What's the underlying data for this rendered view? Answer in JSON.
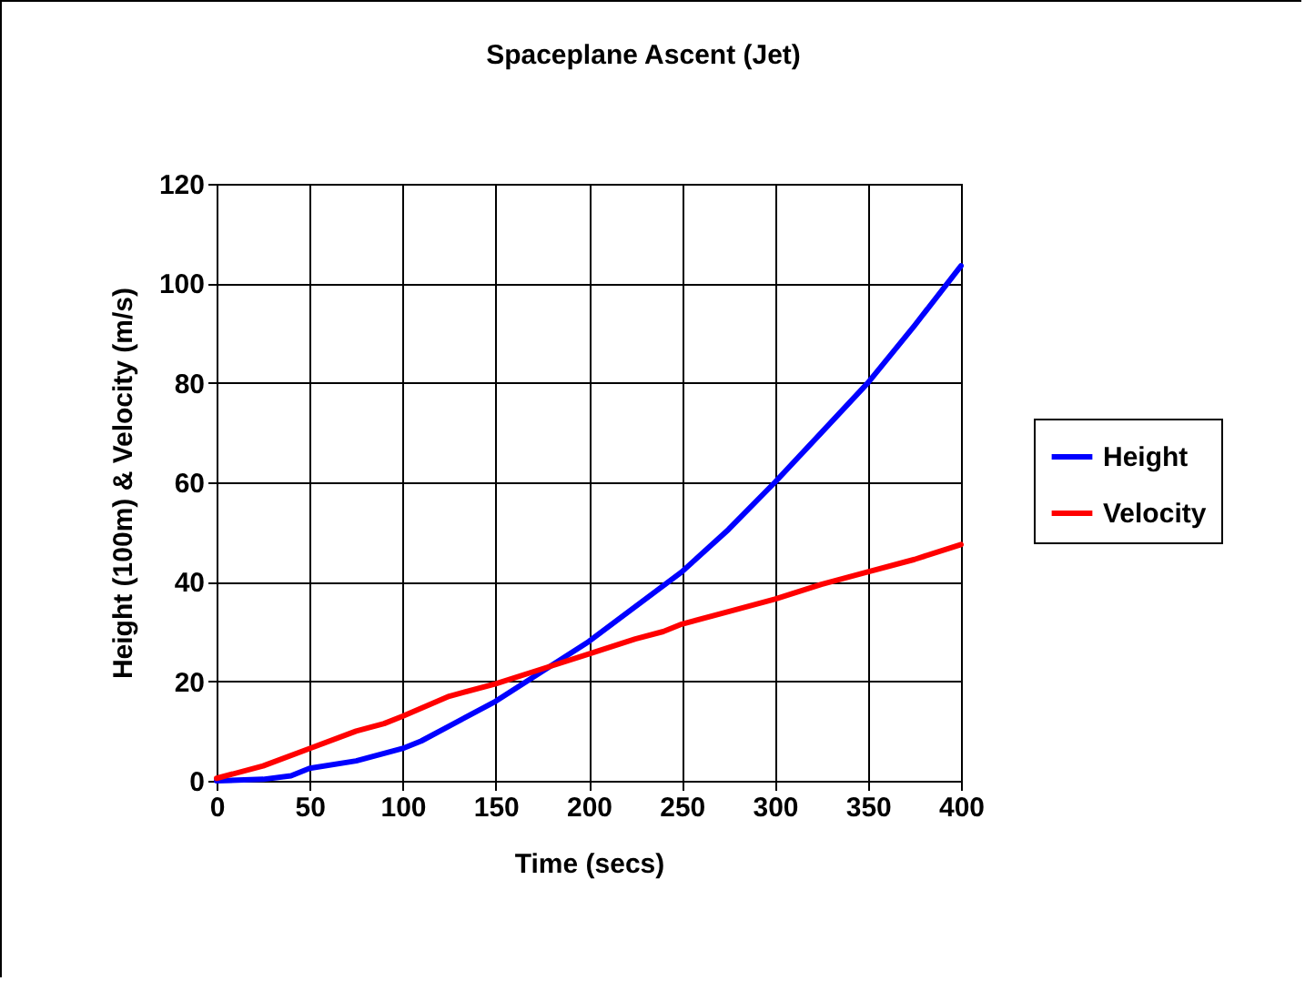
{
  "chart_data": {
    "type": "line",
    "title": "Spaceplane Ascent (Jet)",
    "xlabel": "Time (secs)",
    "ylabel": "Height (100m) & Velocity (m/s)",
    "xlim": [
      0,
      400
    ],
    "xticks": [
      0,
      50,
      100,
      150,
      200,
      250,
      300,
      350,
      400
    ],
    "ylim": [
      0,
      120
    ],
    "yticks": [
      0,
      20,
      40,
      60,
      80,
      100,
      120
    ],
    "grid": true,
    "legend": "right",
    "line_style": "solid",
    "marker": "none",
    "series": [
      {
        "name": "Height",
        "color": "#0000ff",
        "x": [
          0,
          25,
          40,
          50,
          75,
          100,
          110,
          125,
          150,
          175,
          200,
          225,
          250,
          275,
          300,
          325,
          350,
          375,
          400
        ],
        "values": [
          0,
          0.3,
          1,
          2.5,
          4,
          6.5,
          8,
          11,
          16,
          22,
          28,
          35,
          42,
          50.5,
          60,
          70,
          80,
          91.5,
          103.5
        ]
      },
      {
        "name": "Velocity",
        "color": "#ff0000",
        "x": [
          0,
          25,
          50,
          75,
          90,
          100,
          125,
          150,
          175,
          200,
          225,
          240,
          250,
          275,
          300,
          325,
          350,
          375,
          400
        ],
        "values": [
          0.5,
          3,
          6.5,
          10,
          11.5,
          13,
          17,
          19.5,
          22.5,
          25.5,
          28.5,
          30,
          31.5,
          34,
          36.5,
          39.5,
          42,
          44.5,
          47.5
        ]
      }
    ]
  }
}
